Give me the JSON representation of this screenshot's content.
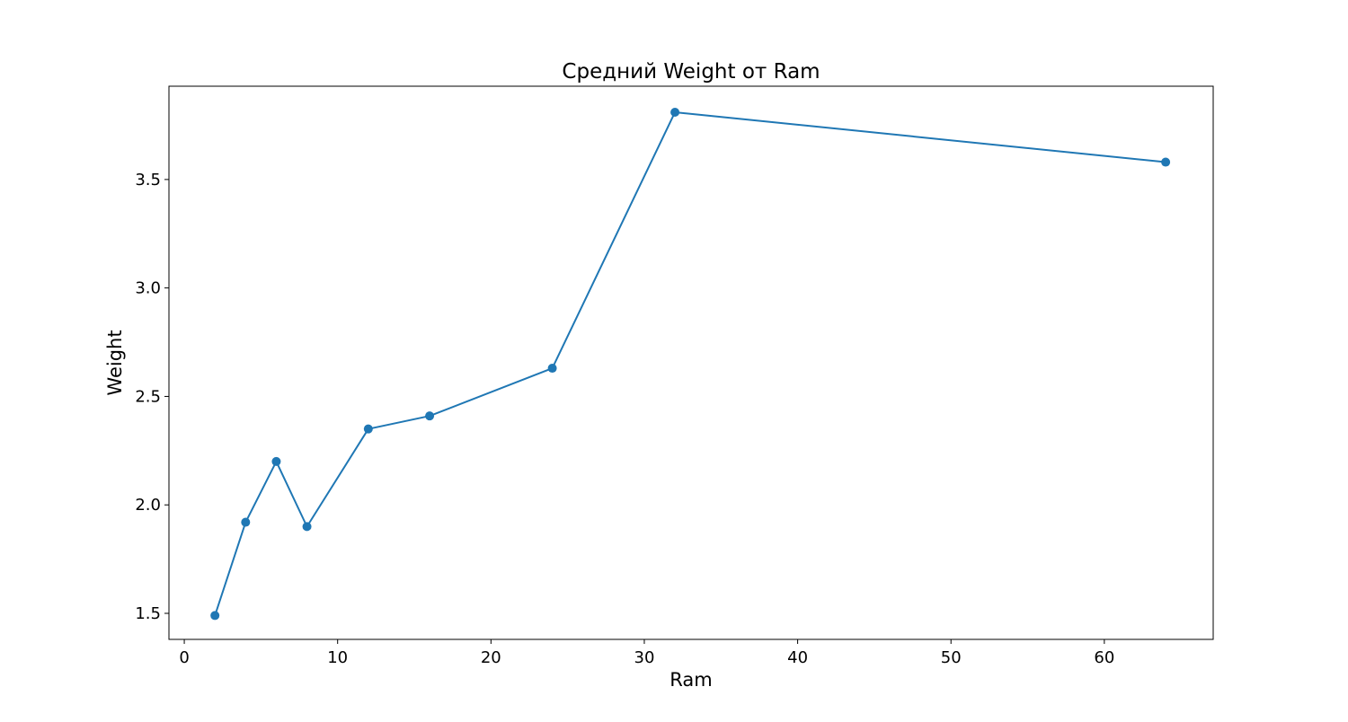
{
  "chart_data": {
    "type": "line",
    "title": "Средний Weight от Ram",
    "xlabel": "Ram",
    "ylabel": "Weight",
    "x": [
      2,
      4,
      6,
      8,
      12,
      16,
      24,
      32,
      64
    ],
    "series": [
      {
        "values": [
          1.49,
          1.92,
          2.2,
          1.9,
          2.35,
          2.41,
          2.63,
          3.81,
          3.58
        ],
        "color": "#1f77b4",
        "marker": "circle"
      }
    ],
    "xlim": [
      -1,
      67.1
    ],
    "ylim": [
      1.38,
      3.93
    ],
    "xticks": [
      0,
      10,
      20,
      30,
      40,
      50,
      60
    ],
    "xtick_labels": [
      "0",
      "10",
      "20",
      "30",
      "40",
      "50",
      "60"
    ],
    "yticks": [
      1.5,
      2.0,
      2.5,
      3.0,
      3.5
    ],
    "ytick_labels": [
      "1.5",
      "2.0",
      "2.5",
      "3.0",
      "3.5"
    ],
    "grid": false,
    "legend": false
  }
}
